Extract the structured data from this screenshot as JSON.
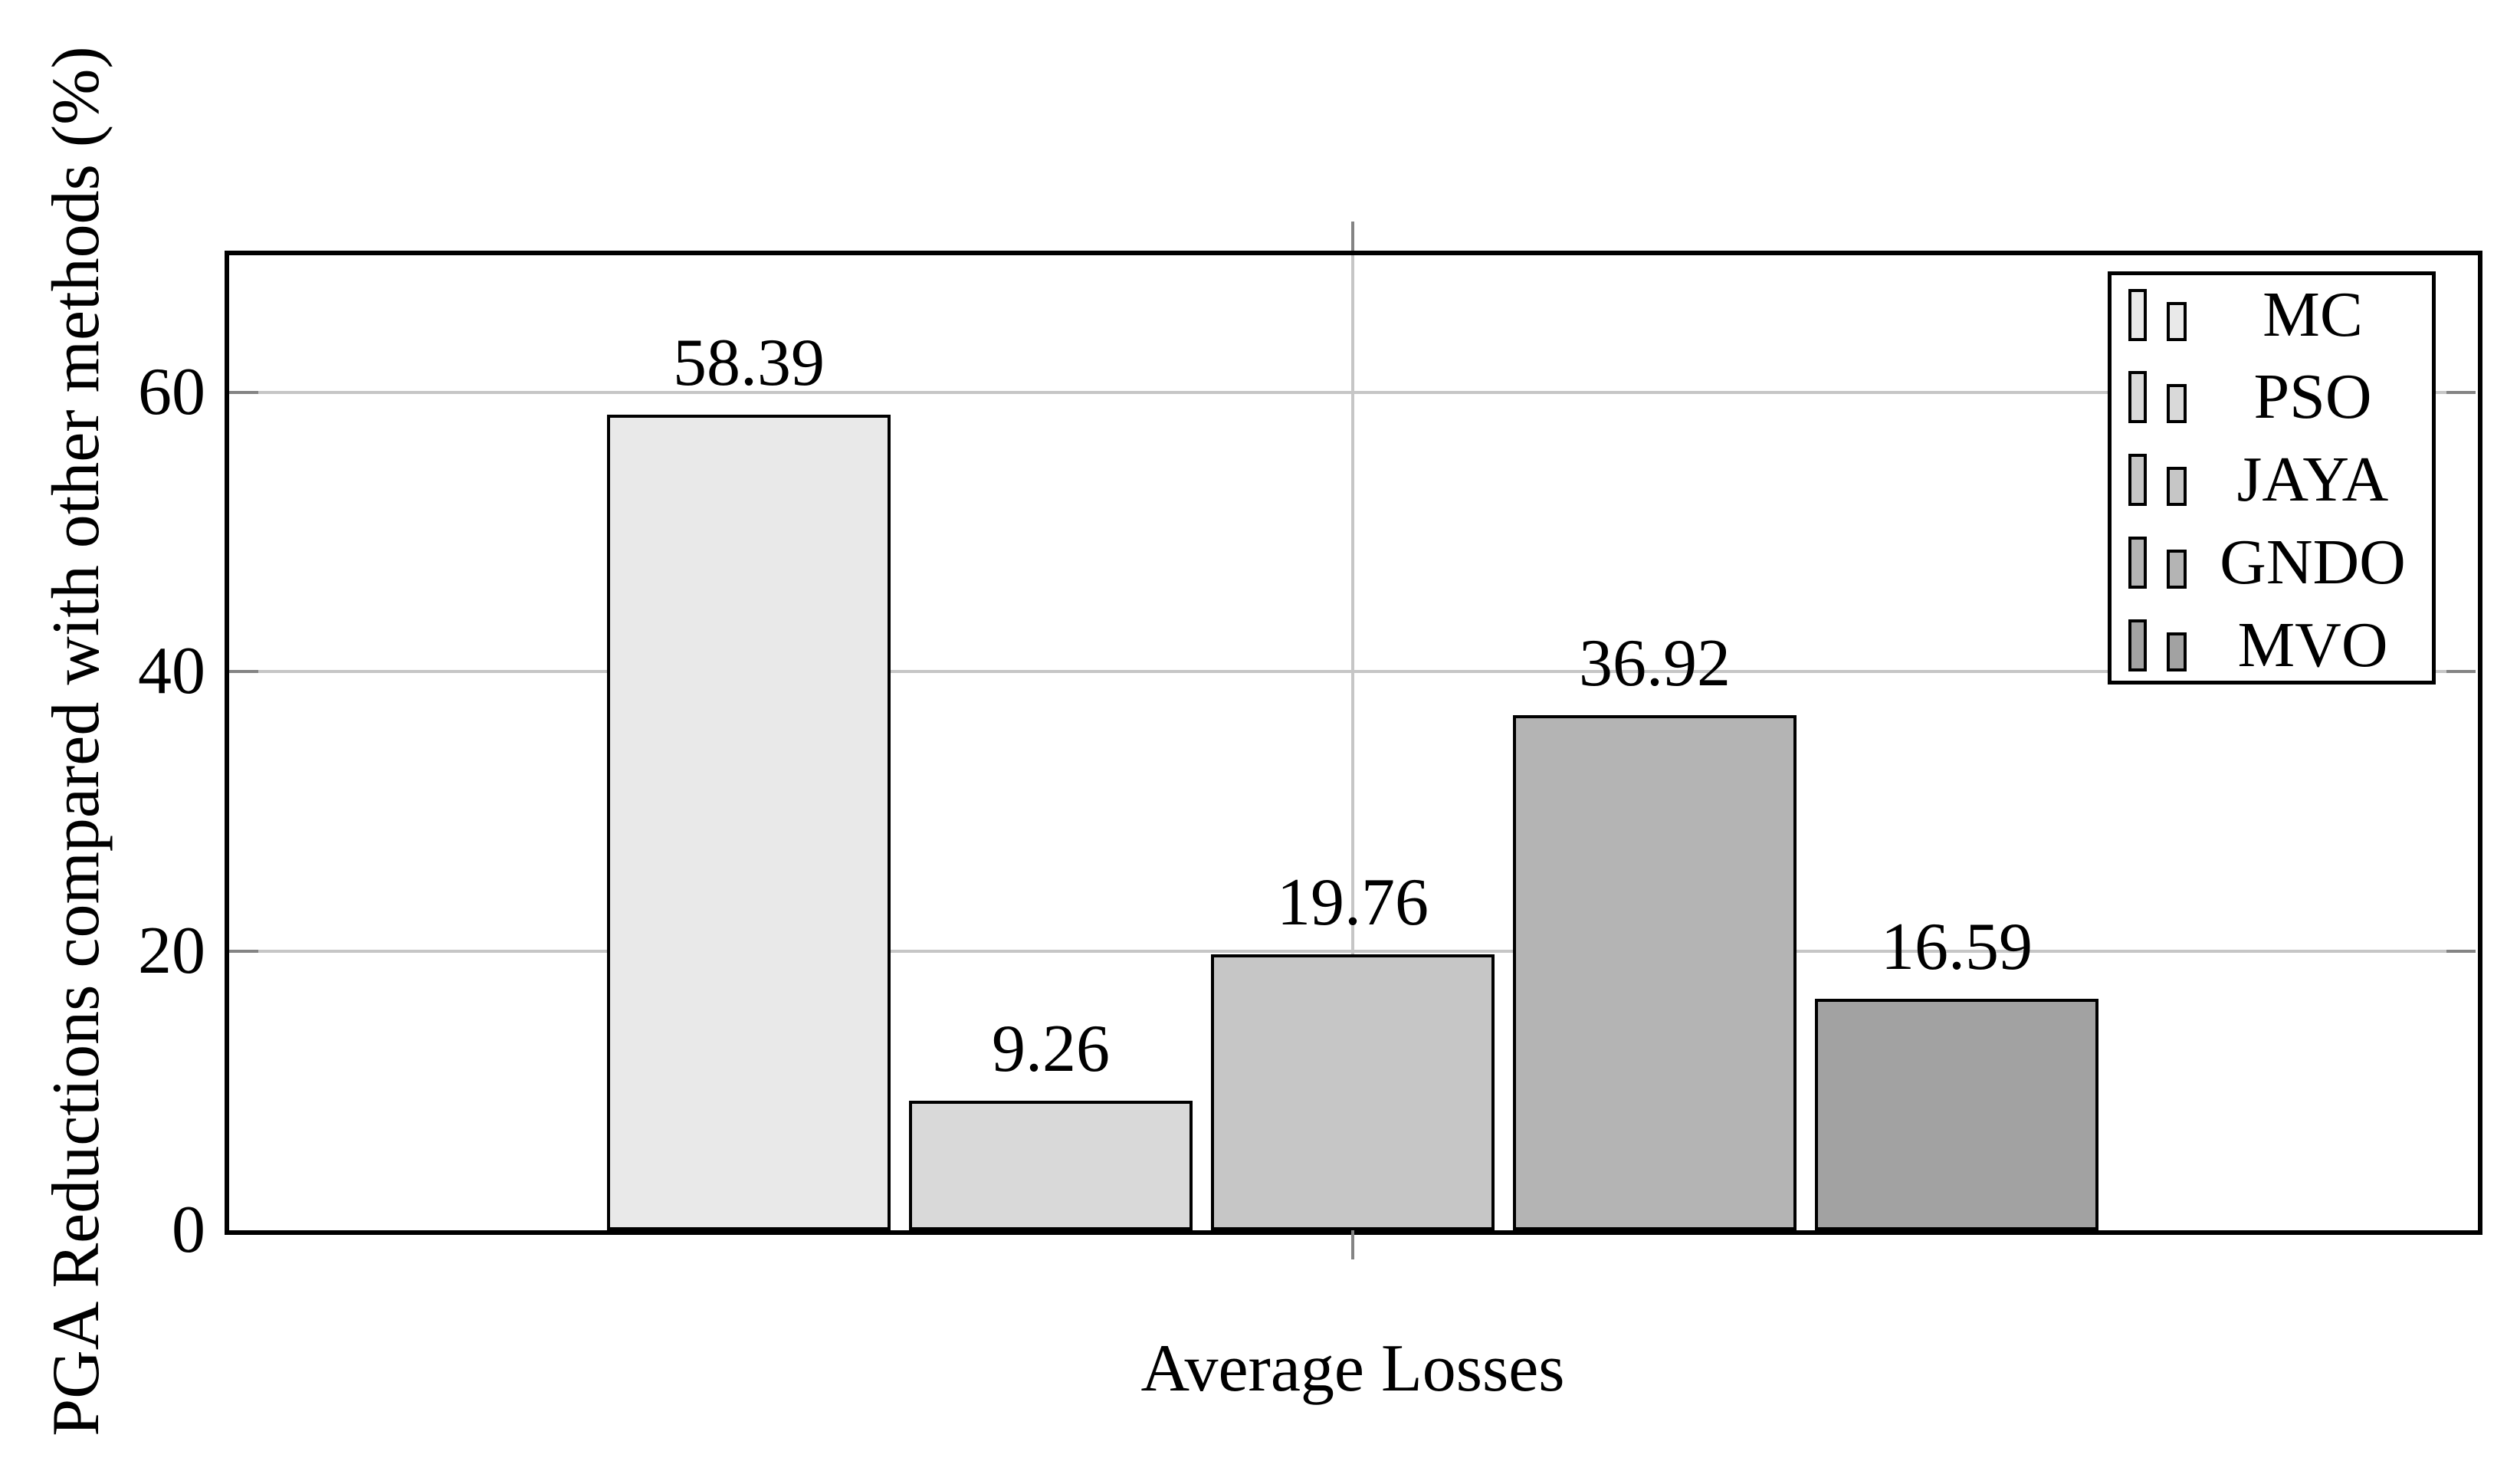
{
  "chart_data": {
    "type": "bar",
    "title": "",
    "xlabel": "Average Losses",
    "ylabel": "PGA Reductions compared with other methods (%)",
    "categories": [
      "Average Losses"
    ],
    "series": [
      {
        "name": "MC",
        "value": 58.39,
        "label": "58.39",
        "fill": "#e9e9e9"
      },
      {
        "name": "PSO",
        "value": 9.26,
        "label": "9.26",
        "fill": "#d9d9d9"
      },
      {
        "name": "JAYA",
        "value": 19.76,
        "label": "19.76",
        "fill": "#c6c6c6"
      },
      {
        "name": "GNDO",
        "value": 36.92,
        "label": "36.92",
        "fill": "#b4b4b4"
      },
      {
        "name": "MVO",
        "value": 16.59,
        "label": "16.59",
        "fill": "#a2a2a2"
      }
    ],
    "ylim": [
      0,
      70
    ],
    "yticks": [
      0,
      20,
      40,
      60
    ],
    "ytick_labels": [
      "0",
      "20",
      "40",
      "60"
    ],
    "grid": true,
    "legend_position": "top-right",
    "legend_entries": [
      "MC",
      "PSO",
      "JAYA",
      "GNDO",
      "MVO"
    ]
  },
  "colors": {
    "background": "#ffffff",
    "axis": "#000000",
    "bar_edge": "#000000",
    "gridline": "#c6c6c6",
    "tick": "#848484",
    "text": "#000000"
  }
}
